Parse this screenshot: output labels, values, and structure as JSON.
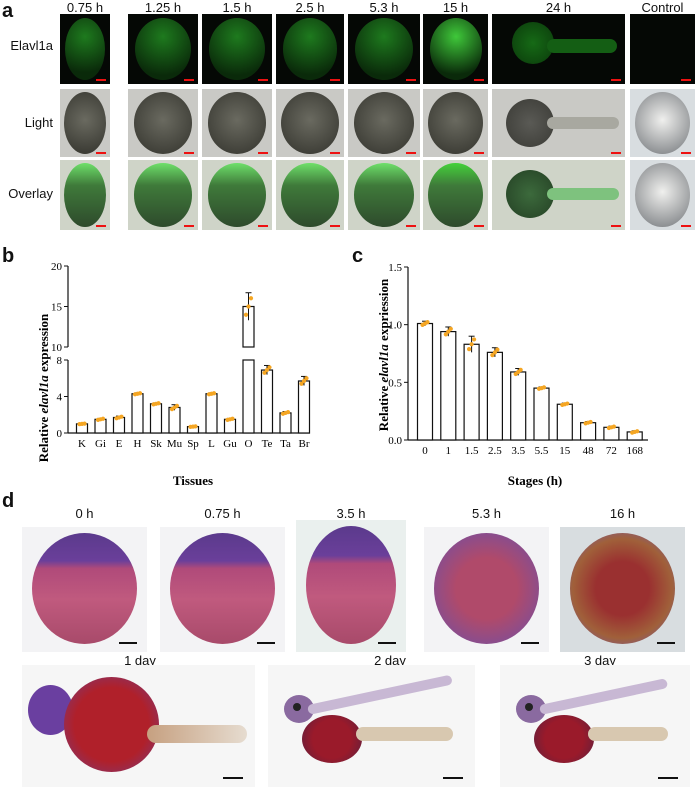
{
  "panel_a": {
    "label": "a",
    "time_points": [
      "0.75 h",
      "1.25 h",
      "1.5 h",
      "2.5 h",
      "5.3 h",
      "15 h",
      "24 h",
      "Control"
    ],
    "row_labels": [
      "Elavl1a",
      "Light",
      "Overlay"
    ]
  },
  "panel_d": {
    "label": "d",
    "top_times": [
      "0 h",
      "0.75 h",
      "3.5 h",
      "5.3 h",
      "16 h"
    ],
    "bottom_times": [
      "1 day",
      "2 day",
      "3 day"
    ]
  },
  "chart_data": [
    {
      "panel": "b",
      "type": "bar",
      "xlabel": "Tissues",
      "ylabel_prefix": "Relative ",
      "ylabel_gene": "elavl1a",
      "ylabel_suffix": " expression",
      "categories": [
        "K",
        "Gi",
        "E",
        "H",
        "Sk",
        "Mu",
        "Sp",
        "L",
        "Gu",
        "O",
        "Te",
        "Ta",
        "Br"
      ],
      "values": [
        1.0,
        1.5,
        1.7,
        4.3,
        3.2,
        2.8,
        0.7,
        4.3,
        1.5,
        15.0,
        6.9,
        2.2,
        5.7
      ],
      "errors": [
        0.05,
        0.1,
        0.15,
        0.1,
        0.1,
        0.3,
        0.05,
        0.1,
        0.1,
        1.7,
        0.5,
        0.15,
        0.5
      ],
      "y_axis_break": {
        "lower": [
          0,
          8
        ],
        "upper": [
          10,
          20
        ]
      },
      "lower_ticks": [
        "0",
        "4",
        "8"
      ],
      "upper_ticks": [
        "10",
        "15",
        "20"
      ]
    },
    {
      "panel": "c",
      "type": "bar",
      "xlabel": "Stages (h)",
      "ylabel_prefix": "Relative ",
      "ylabel_gene": "elavl1a",
      "ylabel_suffix": " expriession",
      "categories": [
        "0",
        "1",
        "1.5",
        "2.5",
        "3.5",
        "5.5",
        "15",
        "48",
        "72",
        "168"
      ],
      "values": [
        1.01,
        0.94,
        0.83,
        0.76,
        0.59,
        0.45,
        0.31,
        0.15,
        0.11,
        0.07
      ],
      "errors": [
        0.02,
        0.04,
        0.07,
        0.04,
        0.03,
        0.01,
        0.01,
        0.01,
        0.01,
        0.01
      ],
      "ylim": [
        0,
        1.5
      ],
      "ticks": [
        "0.0",
        "0.5",
        "1.0",
        "1.5"
      ]
    }
  ],
  "colors": {
    "bar_fill": "#ffffff",
    "bar_stroke": "#111111",
    "dot": "#f5a623",
    "gfp": "#2ec22e",
    "stain": "#b03a6a"
  }
}
